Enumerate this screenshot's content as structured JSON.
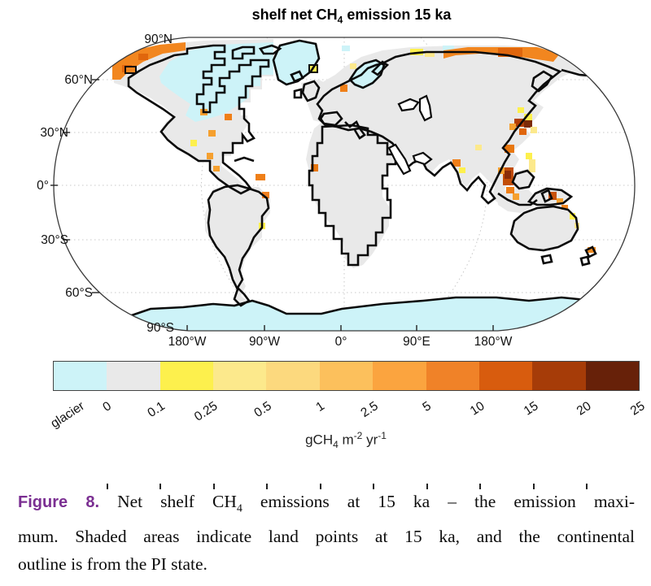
{
  "figure_title": {
    "pre": "shelf net CH",
    "sub": "4",
    "post": " emission 15 ka"
  },
  "map": {
    "lat_labels": [
      "90°N",
      "60°N",
      "30°N",
      "0°",
      "30°S",
      "60°S",
      "90°S"
    ],
    "lon_labels": [
      "180°W",
      "90°W",
      "0°",
      "90°E",
      "180°W"
    ]
  },
  "colorbar": {
    "tick_labels": [
      "glacier",
      "0",
      "0.1",
      "0.25",
      "0.5",
      "1",
      "2.5",
      "5",
      "10",
      "15",
      "20",
      "25"
    ],
    "segment_colors": [
      "#cdf3f8",
      "#e9e9e9",
      "#fdf04d",
      "#fce98c",
      "#fcd97e",
      "#fcc05c",
      "#fba43f",
      "#f08228",
      "#d85c0e",
      "#a63c08",
      "#672109"
    ],
    "unit": {
      "p1": "gCH",
      "sub": "4",
      "p2": " m",
      "sup1": "-2",
      "p3": " yr",
      "sup2": "-1"
    }
  },
  "caption": {
    "label": "Figure 8.",
    "line1_pre": " Net shelf CH",
    "line1_sub": "4",
    "line1_post": " emissions at 15 ka – the emission maxi-",
    "line2": "mum. Shaded areas indicate land points at 15 ka, and the continental",
    "line3": "outline is from the PI state."
  },
  "colors": {
    "caption_label": "#7b2f92",
    "glacier_fill": "#cdf3f8",
    "land_fill": "#e9e9e9",
    "coast_outline": "#0a0a0a"
  }
}
